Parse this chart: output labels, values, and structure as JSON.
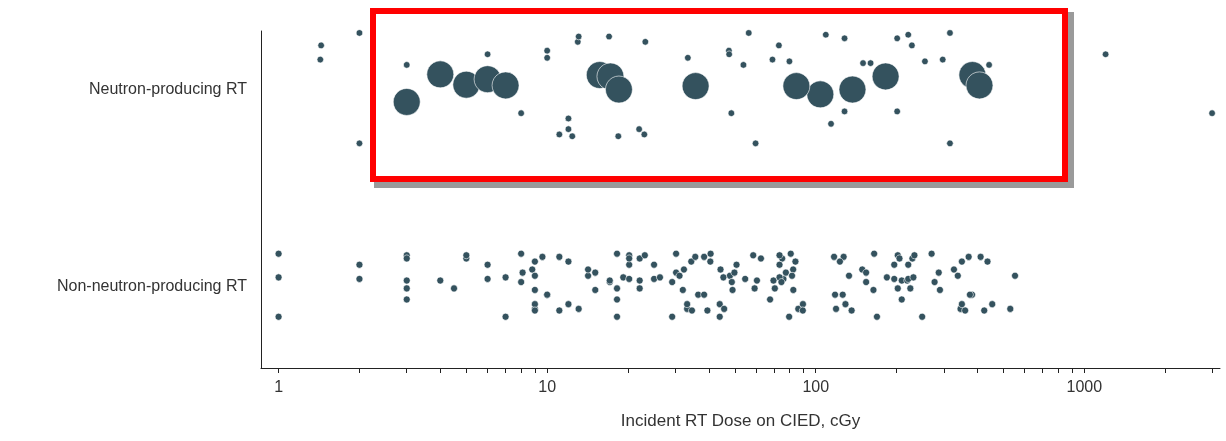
{
  "chart_data": {
    "type": "scatter",
    "orientation": "horizontal",
    "xlabel": "Incident RT Dose on CIED, cGy",
    "log": "x",
    "marker": "circle",
    "grid": false,
    "categories": [
      "Neutron-producing RT",
      "Non-neutron-producing RT"
    ],
    "xlim": [
      0.86,
      3200
    ],
    "xticks": [
      1,
      {
        "value": 2,
        "label": null
      },
      {
        "value": 3,
        "label": null
      },
      {
        "value": 4,
        "label": null
      },
      {
        "value": 5,
        "label": null
      },
      {
        "value": 6,
        "label": null
      },
      {
        "value": 7,
        "label": null
      },
      {
        "value": 8,
        "label": null
      },
      {
        "value": 9,
        "label": null
      },
      10,
      {
        "value": 20,
        "label": null
      },
      {
        "value": 30,
        "label": null
      },
      {
        "value": 40,
        "label": null
      },
      {
        "value": 50,
        "label": null
      },
      {
        "value": 60,
        "label": null
      },
      {
        "value": 70,
        "label": null
      },
      {
        "value": 80,
        "label": null
      },
      {
        "value": 90,
        "label": null
      },
      100,
      {
        "value": 200,
        "label": null
      },
      {
        "value": 300,
        "label": null
      },
      {
        "value": 400,
        "label": null
      },
      {
        "value": 500,
        "label": null
      },
      {
        "value": 600,
        "label": null
      },
      {
        "value": 700,
        "label": null
      },
      {
        "value": 800,
        "label": null
      },
      {
        "value": 900,
        "label": null
      },
      1000,
      {
        "value": 2000,
        "label": null
      },
      {
        "value": 3000,
        "label": null
      }
    ],
    "series": [
      {
        "type": "bubble",
        "color": "#34525e",
        "x": [
          "Neutron-producing RT",
          "Neutron-producing RT",
          "Neutron-producing RT",
          "Neutron-producing RT",
          "Neutron-producing RT",
          "Neutron-producing RT",
          "Neutron-producing RT",
          "Neutron-producing RT",
          "Neutron-producing RT",
          "Neutron-producing RT",
          "Neutron-producing RT",
          "Neutron-producing RT",
          "Neutron-producing RT",
          "Neutron-producing RT",
          "Neutron-producing RT",
          "Neutron-producing RT",
          "Neutron-producing RT",
          "Neutron-producing RT",
          "Neutron-producing RT",
          "Neutron-producing RT",
          "Neutron-producing RT",
          "Neutron-producing RT",
          "Neutron-producing RT",
          "Neutron-producing RT",
          "Neutron-producing RT",
          "Neutron-producing RT",
          "Neutron-producing RT",
          "Neutron-producing RT",
          "Neutron-producing RT",
          "Neutron-producing RT",
          "Neutron-producing RT",
          "Neutron-producing RT",
          "Neutron-producing RT",
          "Neutron-producing RT",
          "Neutron-producing RT",
          "Neutron-producing RT",
          "Neutron-producing RT",
          "Neutron-producing RT",
          "Neutron-producing RT",
          "Neutron-producing RT",
          "Neutron-producing RT",
          "Neutron-producing RT",
          "Neutron-producing RT",
          "Neutron-producing RT",
          "Neutron-producing RT",
          "Neutron-producing RT",
          "Neutron-producing RT",
          "Neutron-producing RT",
          "Neutron-producing RT",
          "Neutron-producing RT",
          "Neutron-producing RT",
          "Neutron-producing RT",
          "Neutron-producing RT",
          "Neutron-producing RT",
          "Neutron-producing RT",
          "Neutron-producing RT",
          "Neutron-producing RT",
          "Neutron-producing RT",
          "Neutron-producing RT",
          "Neutron-producing RT",
          "Neutron-producing RT",
          "Neutron-producing RT",
          "Neutron-producing RT"
        ],
        "values": [
          4.0,
          3.0,
          5.0,
          6.0,
          7.0,
          15.7,
          17.2,
          18.5,
          35.7,
          104,
          84.7,
          137,
          182,
          383,
          407,
          1.44,
          1.43,
          2.0,
          2.0,
          3.0,
          6.0,
          8.0,
          10,
          10,
          11.1,
          12,
          13,
          12.4,
          13.1,
          12,
          12,
          17,
          18.4,
          23.2,
          22,
          23,
          33.4,
          47.5,
          48.5,
          47.6,
          53.8,
          56.3,
          59.7,
          69,
          72.9,
          79.8,
          109,
          128,
          128,
          150,
          114,
          160,
          201,
          201,
          221,
          255,
          228,
          297,
          316,
          316,
          442,
          1200,
          2990
        ],
        "sizes": [
          1,
          1,
          1,
          1,
          1,
          1,
          1,
          1,
          1,
          1,
          1,
          1,
          1,
          1,
          1,
          0.06,
          0.06,
          0.06,
          0.06,
          0.06,
          0.06,
          0.06,
          0.06,
          0.06,
          0.06,
          0.06,
          0.06,
          0.06,
          0.06,
          0.06,
          0.06,
          0.06,
          0.06,
          0.06,
          0.06,
          0.06,
          0.06,
          0.06,
          0.06,
          0.06,
          0.06,
          0.06,
          0.06,
          0.06,
          0.06,
          0.06,
          0.06,
          0.06,
          0.06,
          0.06,
          0.06,
          0.06,
          0.06,
          0.06,
          0.06,
          0.06,
          0.06,
          0.06,
          0.06,
          0.06,
          0.06,
          0.06,
          0.06
        ]
      },
      {
        "color": "#34525e",
        "x": [
          "Non-neutron-producing RT",
          "Non-neutron-producing RT",
          "Non-neutron-producing RT",
          "Non-neutron-producing RT",
          "Non-neutron-producing RT",
          "Non-neutron-producing RT",
          "Non-neutron-producing RT",
          "Non-neutron-producing RT",
          "Non-neutron-producing RT",
          "Non-neutron-producing RT",
          "Non-neutron-producing RT",
          "Non-neutron-producing RT",
          "Non-neutron-producing RT",
          "Non-neutron-producing RT",
          "Non-neutron-producing RT",
          "Non-neutron-producing RT",
          "Non-neutron-producing RT",
          "Non-neutron-producing RT",
          "Non-neutron-producing RT",
          "Non-neutron-producing RT",
          "Non-neutron-producing RT",
          "Non-neutron-producing RT",
          "Non-neutron-producing RT",
          "Non-neutron-producing RT",
          "Non-neutron-producing RT",
          "Non-neutron-producing RT",
          "Non-neutron-producing RT",
          "Non-neutron-producing RT",
          "Non-neutron-producing RT",
          "Non-neutron-producing RT",
          "Non-neutron-producing RT",
          "Non-neutron-producing RT",
          "Non-neutron-producing RT",
          "Non-neutron-producing RT",
          "Non-neutron-producing RT",
          "Non-neutron-producing RT",
          "Non-neutron-producing RT",
          "Non-neutron-producing RT",
          "Non-neutron-producing RT",
          "Non-neutron-producing RT",
          "Non-neutron-producing RT",
          "Non-neutron-producing RT",
          "Non-neutron-producing RT",
          "Non-neutron-producing RT",
          "Non-neutron-producing RT",
          "Non-neutron-producing RT",
          "Non-neutron-producing RT",
          "Non-neutron-producing RT",
          "Non-neutron-producing RT",
          "Non-neutron-producing RT",
          "Non-neutron-producing RT",
          "Non-neutron-producing RT",
          "Non-neutron-producing RT",
          "Non-neutron-producing RT",
          "Non-neutron-producing RT",
          "Non-neutron-producing RT",
          "Non-neutron-producing RT",
          "Non-neutron-producing RT",
          "Non-neutron-producing RT",
          "Non-neutron-producing RT",
          "Non-neutron-producing RT",
          "Non-neutron-producing RT",
          "Non-neutron-producing RT",
          "Non-neutron-producing RT",
          "Non-neutron-producing RT",
          "Non-neutron-producing RT",
          "Non-neutron-producing RT",
          "Non-neutron-producing RT",
          "Non-neutron-producing RT",
          "Non-neutron-producing RT",
          "Non-neutron-producing RT",
          "Non-neutron-producing RT",
          "Non-neutron-producing RT",
          "Non-neutron-producing RT",
          "Non-neutron-producing RT",
          "Non-neutron-producing RT",
          "Non-neutron-producing RT",
          "Non-neutron-producing RT",
          "Non-neutron-producing RT",
          "Non-neutron-producing RT",
          "Non-neutron-producing RT",
          "Non-neutron-producing RT",
          "Non-neutron-producing RT",
          "Non-neutron-producing RT",
          "Non-neutron-producing RT",
          "Non-neutron-producing RT",
          "Non-neutron-producing RT",
          "Non-neutron-producing RT",
          "Non-neutron-producing RT",
          "Non-neutron-producing RT",
          "Non-neutron-producing RT",
          "Non-neutron-producing RT",
          "Non-neutron-producing RT",
          "Non-neutron-producing RT",
          "Non-neutron-producing RT",
          "Non-neutron-producing RT",
          "Non-neutron-producing RT",
          "Non-neutron-producing RT",
          "Non-neutron-producing RT",
          "Non-neutron-producing RT",
          "Non-neutron-producing RT",
          "Non-neutron-producing RT",
          "Non-neutron-producing RT",
          "Non-neutron-producing RT",
          "Non-neutron-producing RT",
          "Non-neutron-producing RT",
          "Non-neutron-producing RT",
          "Non-neutron-producing RT",
          "Non-neutron-producing RT",
          "Non-neutron-producing RT",
          "Non-neutron-producing RT",
          "Non-neutron-producing RT",
          "Non-neutron-producing RT",
          "Non-neutron-producing RT",
          "Non-neutron-producing RT",
          "Non-neutron-producing RT",
          "Non-neutron-producing RT",
          "Non-neutron-producing RT",
          "Non-neutron-producing RT",
          "Non-neutron-producing RT",
          "Non-neutron-producing RT",
          "Non-neutron-producing RT",
          "Non-neutron-producing RT",
          "Non-neutron-producing RT",
          "Non-neutron-producing RT",
          "Non-neutron-producing RT",
          "Non-neutron-producing RT",
          "Non-neutron-producing RT",
          "Non-neutron-producing RT",
          "Non-neutron-producing RT",
          "Non-neutron-producing RT",
          "Non-neutron-producing RT",
          "Non-neutron-producing RT",
          "Non-neutron-producing RT",
          "Non-neutron-producing RT",
          "Non-neutron-producing RT",
          "Non-neutron-producing RT",
          "Non-neutron-producing RT",
          "Non-neutron-producing RT",
          "Non-neutron-producing RT",
          "Non-neutron-producing RT",
          "Non-neutron-producing RT",
          "Non-neutron-producing RT",
          "Non-neutron-producing RT",
          "Non-neutron-producing RT",
          "Non-neutron-producing RT",
          "Non-neutron-producing RT",
          "Non-neutron-producing RT",
          "Non-neutron-producing RT",
          "Non-neutron-producing RT",
          "Non-neutron-producing RT",
          "Non-neutron-producing RT",
          "Non-neutron-producing RT",
          "Non-neutron-producing RT",
          "Non-neutron-producing RT",
          "Non-neutron-producing RT",
          "Non-neutron-producing RT",
          "Non-neutron-producing RT",
          "Non-neutron-producing RT",
          "Non-neutron-producing RT"
        ],
        "values": [
          1,
          1,
          1,
          2.0,
          2.0,
          3.0,
          3.0,
          3,
          3,
          3,
          4.0,
          4.5,
          5.0,
          5.0,
          6.0,
          6.0,
          7.0,
          7.0,
          8.0,
          8,
          8.1,
          9,
          8.8,
          9,
          9,
          9,
          9,
          9,
          9.6,
          10,
          10,
          11.1,
          11.1,
          12.0,
          12,
          13.1,
          14.2,
          14.2,
          15.1,
          15.1,
          17.1,
          18.2,
          18.2,
          19.2,
          20.2,
          20.2,
          20.2,
          20.2,
          18.2,
          17.1,
          18.2,
          22.1,
          22.1,
          22.1,
          23.1,
          25,
          25,
          26.3,
          29.2,
          30.2,
          29.2,
          30.2,
          32,
          32.3,
          31.1,
          33.2,
          33.2,
          34.4,
          34.6,
          35.6,
          36.5,
          38.4,
          38.4,
          39.5,
          40.5,
          43.9,
          45.6,
          47.9,
          44.2,
          49,
          49.8,
          48.7,
          40.6,
          43.9,
          45.3,
          50.7,
          54.6,
          58.5,
          62.5,
          59.2,
          60.4,
          67.6,
          69.6,
          70.4,
          75,
          73.3,
          75.8,
          73.3,
          73.3,
          79.6,
          80.7,
          74.5,
          77.4,
          82.5,
          82.4,
          81.6,
          86.1,
          89.6,
          84,
          89.5,
          117,
          118,
          126,
          127,
          136,
          123,
          129,
          119,
          133,
          149,
          164,
          154,
          154,
          165,
          169,
          184,
          196,
          196,
          202,
          205,
          202,
          209,
          209,
          219,
          225,
          229,
          233,
          221,
          221,
          231,
          249,
          270,
          277,
          287,
          290,
          327,
          338,
          346,
          350,
          350,
          360,
          371,
          382,
          375,
          411,
          424,
          436,
          454,
          530,
          552
        ]
      }
    ]
  }
}
